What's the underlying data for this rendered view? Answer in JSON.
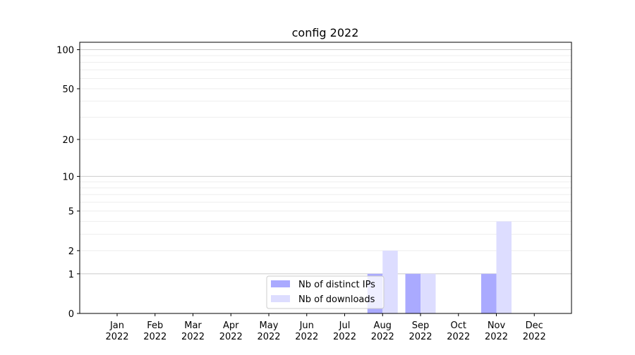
{
  "chart_data": {
    "type": "bar",
    "title": "config 2022",
    "xlabel": "",
    "ylabel": "",
    "yscale": "log(y+1)",
    "ylim": [
      0,
      114
    ],
    "yticks": [
      0,
      1,
      2,
      5,
      10,
      20,
      50,
      100
    ],
    "ytick_labels": [
      "0",
      "1",
      "2",
      "5",
      "10",
      "20",
      "50",
      "100"
    ],
    "grid": true,
    "legend_position": "lower-center",
    "categories": [
      [
        "Jan",
        "2022"
      ],
      [
        "Feb",
        "2022"
      ],
      [
        "Mar",
        "2022"
      ],
      [
        "Apr",
        "2022"
      ],
      [
        "May",
        "2022"
      ],
      [
        "Jun",
        "2022"
      ],
      [
        "Jul",
        "2022"
      ],
      [
        "Aug",
        "2022"
      ],
      [
        "Sep",
        "2022"
      ],
      [
        "Oct",
        "2022"
      ],
      [
        "Nov",
        "2022"
      ],
      [
        "Dec",
        "2022"
      ]
    ],
    "series": [
      {
        "name": "Nb of distinct IPs",
        "color": "#aaaaff",
        "values": [
          0,
          0,
          0,
          0,
          0,
          0,
          0,
          1,
          1,
          0,
          1,
          0
        ]
      },
      {
        "name": "Nb of downloads",
        "color": "#ddddff",
        "values": [
          0,
          0,
          0,
          0,
          0,
          0,
          0,
          2,
          1,
          0,
          4,
          0
        ]
      }
    ]
  }
}
